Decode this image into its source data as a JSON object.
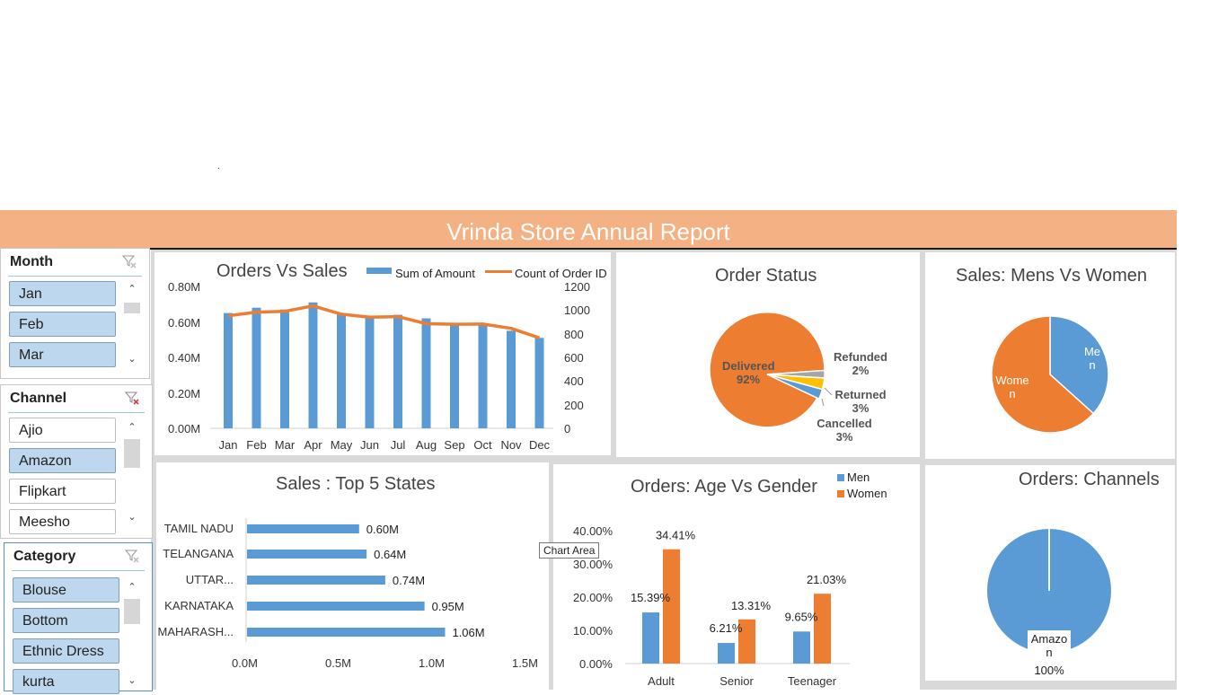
{
  "report_title": "Vrinda Store Annual Report",
  "slicers": {
    "month": {
      "title": "Month",
      "items": [
        "Jan",
        "Feb",
        "Mar"
      ]
    },
    "channel": {
      "title": "Channel",
      "items": [
        "Ajio",
        "Amazon",
        "Flipkart",
        "Meesho"
      ],
      "selected": [
        "Amazon"
      ]
    },
    "category": {
      "title": "Category",
      "items": [
        "Blouse",
        "Bottom",
        "Ethnic Dress",
        "kurta"
      ]
    }
  },
  "tooltip": "Chart Area",
  "charts": {
    "orders_vs_sales": {
      "title": "Orders Vs Sales",
      "legend": [
        "Sum of Amount",
        "Count of Order ID"
      ],
      "y_left_ticks": [
        "0.80M",
        "0.60M",
        "0.40M",
        "0.20M",
        "0.00M"
      ],
      "y_right_ticks": [
        "1200",
        "1000",
        "800",
        "600",
        "400",
        "200",
        "0"
      ]
    },
    "order_status": {
      "title": "Order Status",
      "labels": [
        [
          "Delivered",
          "92%"
        ],
        [
          "Refunded",
          "2%"
        ],
        [
          "Returned",
          "3%"
        ],
        [
          "Cancelled",
          "3%"
        ]
      ]
    },
    "mens_vs_women": {
      "title": "Sales: Mens Vs Women",
      "labels": [
        [
          "Me",
          "n"
        ],
        [
          "Wome",
          "n"
        ]
      ]
    },
    "top_states": {
      "title": "Sales : Top 5 States",
      "x_ticks": [
        "0.0M",
        "0.5M",
        "1.0M",
        "1.5M"
      ]
    },
    "age_vs_gender": {
      "title": "Orders: Age Vs Gender",
      "legend": [
        "Men",
        "Women"
      ],
      "y_ticks": [
        "40.00%",
        "30.00%",
        "20.00%",
        "10.00%",
        "0.00%"
      ]
    },
    "channels": {
      "title": "Orders: Channels",
      "labels": [
        [
          "Amazo",
          "n"
        ],
        [
          "100%"
        ]
      ]
    }
  },
  "colors": {
    "blue": "#5b9bd5",
    "orange": "#ed7d31",
    "gray": "#a5a5a5",
    "yellow": "#ffc000",
    "banner": "#f4b183"
  },
  "chart_data": [
    {
      "type": "bar",
      "title": "Orders Vs Sales",
      "categories": [
        "Jan",
        "Feb",
        "Mar",
        "Apr",
        "May",
        "Jun",
        "Jul",
        "Aug",
        "Sep",
        "Oct",
        "Nov",
        "Dec"
      ],
      "series": [
        {
          "name": "Sum of Amount",
          "axis": "left",
          "values": [
            0.65,
            0.68,
            0.67,
            0.71,
            0.65,
            0.63,
            0.64,
            0.62,
            0.59,
            0.59,
            0.55,
            0.51
          ]
        },
        {
          "name": "Count of Order ID",
          "type": "line",
          "axis": "right",
          "values": [
            952,
            983,
            990,
            1035,
            965,
            940,
            945,
            885,
            880,
            882,
            845,
            765
          ]
        }
      ],
      "ylim": [
        0,
        0.8
      ],
      "y2lim": [
        0,
        1200
      ]
    },
    {
      "type": "pie",
      "title": "Order Status",
      "labels": [
        "Delivered",
        "Refunded",
        "Returned",
        "Cancelled"
      ],
      "values": [
        92,
        2,
        3,
        3
      ]
    },
    {
      "type": "pie",
      "title": "Sales: Mens Vs Women",
      "labels": [
        "Men",
        "Women"
      ],
      "values": [
        38,
        62
      ]
    },
    {
      "type": "bar",
      "orientation": "horizontal",
      "title": "Sales : Top 5 States",
      "categories": [
        "TAMIL NADU",
        "TELANGANA",
        "UTTAR...",
        "KARNATAKA",
        "MAHARASH..."
      ],
      "value_labels": [
        "0.60M",
        "0.64M",
        "0.74M",
        "0.95M",
        "1.06M"
      ],
      "values": [
        0.6,
        0.64,
        0.74,
        0.95,
        1.06
      ],
      "xlim": [
        0,
        1.5
      ]
    },
    {
      "type": "bar",
      "title": "Orders: Age Vs Gender",
      "categories": [
        "Adult",
        "Senior",
        "Teenager"
      ],
      "series": [
        {
          "name": "Men",
          "values": [
            15.39,
            6.21,
            9.65
          ],
          "labels": [
            "15.39%",
            "6.21%",
            "9.65%"
          ]
        },
        {
          "name": "Women",
          "values": [
            34.41,
            13.31,
            21.03
          ],
          "labels": [
            "34.41%",
            "13.31%",
            "21.03%"
          ]
        }
      ],
      "ylim": [
        0,
        40
      ]
    },
    {
      "type": "pie",
      "title": "Orders: Channels",
      "labels": [
        "Amazon"
      ],
      "values": [
        100
      ]
    }
  ]
}
